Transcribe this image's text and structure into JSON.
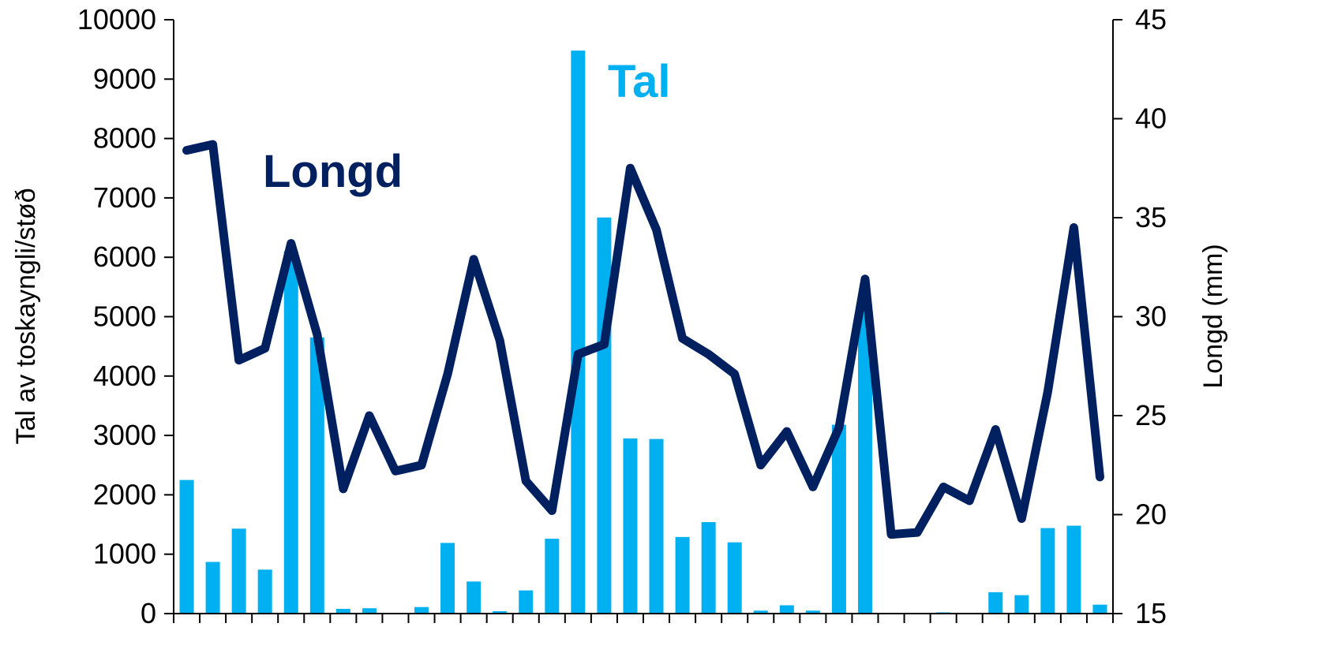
{
  "chart_data": {
    "type": "bar+line",
    "title": "",
    "xlabel": "",
    "ylabel_left": "Tal av toskayngli/støð",
    "ylabel_right": "Longd (mm)",
    "ylim_left": [
      0,
      10000
    ],
    "ylim_right": [
      15,
      45
    ],
    "yticks_left": [
      0,
      1000,
      2000,
      3000,
      4000,
      5000,
      6000,
      7000,
      8000,
      9000,
      10000
    ],
    "yticks_right": [
      15,
      20,
      25,
      30,
      35,
      40,
      45
    ],
    "grid": false,
    "legend": "none",
    "series": [
      {
        "name": "Tal",
        "type": "bar",
        "axis": "left",
        "color": "#00B0F0",
        "values": [
          2250,
          870,
          1430,
          740,
          6100,
          4650,
          80,
          90,
          0,
          110,
          1190,
          540,
          40,
          390,
          1260,
          9480,
          6670,
          2950,
          2940,
          1290,
          1540,
          1200,
          50,
          140,
          50,
          3180,
          5150,
          0,
          0,
          20,
          0,
          360,
          310,
          1440,
          1480,
          150
        ]
      },
      {
        "name": "Longd",
        "type": "line",
        "axis": "right",
        "color": "#002060",
        "values": [
          38.4,
          38.7,
          27.8,
          28.4,
          33.7,
          29.1,
          21.3,
          25.0,
          22.2,
          22.5,
          27.1,
          32.9,
          28.8,
          21.7,
          20.2,
          28.1,
          28.6,
          37.5,
          34.4,
          28.9,
          28.1,
          27.1,
          22.5,
          24.2,
          21.4,
          24.4,
          31.9,
          19.0,
          19.1,
          21.4,
          20.7,
          24.3,
          19.8,
          26.2,
          34.5,
          21.9
        ]
      }
    ],
    "annotations": [
      {
        "text": "Tal",
        "color": "#00B0F0"
      },
      {
        "text": "Longd",
        "color": "#002060"
      }
    ]
  }
}
